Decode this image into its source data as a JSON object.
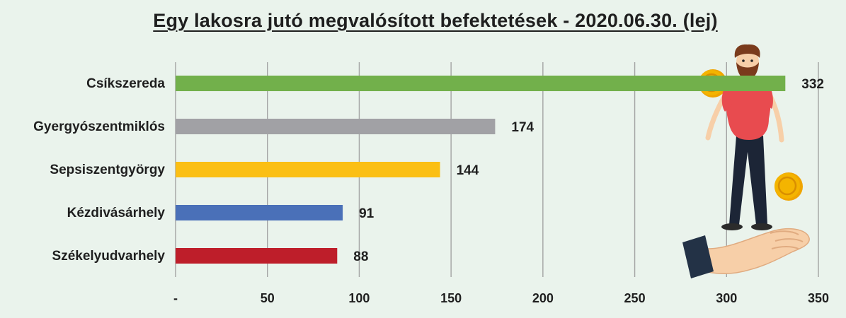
{
  "chart_data": {
    "type": "bar",
    "orientation": "horizontal",
    "title": "Egy lakosra jutó megvalósított befektetések - 2020.06.30. (lej)",
    "categories": [
      "Csíkszereda",
      "Gyergyószentmiklós",
      "Sepsiszentgyörgy",
      "Kézdivásárhely",
      "Székelyudvarhely"
    ],
    "values": [
      332,
      174,
      144,
      91,
      88
    ],
    "colors": [
      "#72b04b",
      "#a1a1a5",
      "#fbbf14",
      "#4a70b8",
      "#be1e2a"
    ],
    "xlim": [
      0,
      350
    ],
    "xticks": [
      0,
      50,
      100,
      150,
      200,
      250,
      300,
      350
    ],
    "xtick_labels": [
      "-",
      "50",
      "100",
      "150",
      "200",
      "250",
      "300",
      "350"
    ],
    "grid": true,
    "data_labels": true
  },
  "illustration": {
    "icon": "man-with-coins-on-hand-illustration",
    "hair_color": "#7a3b1c",
    "shirt_color": "#e84b4f",
    "coin_color": "#f4b400"
  }
}
